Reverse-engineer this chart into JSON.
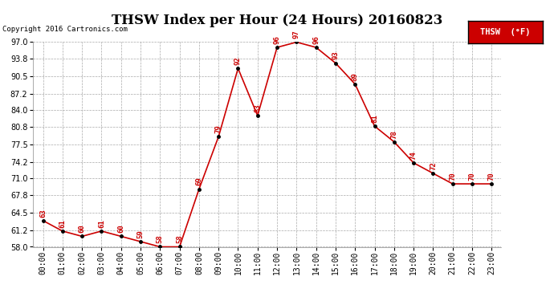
{
  "title": "THSW Index per Hour (24 Hours) 20160823",
  "copyright": "Copyright 2016 Cartronics.com",
  "legend_label": "THSW  (°F)",
  "hours": [
    "00:00",
    "01:00",
    "02:00",
    "03:00",
    "04:00",
    "05:00",
    "06:00",
    "07:00",
    "08:00",
    "09:00",
    "10:00",
    "11:00",
    "12:00",
    "13:00",
    "14:00",
    "15:00",
    "16:00",
    "17:00",
    "18:00",
    "19:00",
    "20:00",
    "21:00",
    "22:00",
    "23:00"
  ],
  "values": [
    63,
    61,
    60,
    61,
    60,
    59,
    58,
    58,
    69,
    79,
    92,
    83,
    96,
    97,
    96,
    93,
    89,
    81,
    78,
    74,
    72,
    70,
    70,
    70
  ],
  "ylim": [
    58.0,
    97.0
  ],
  "yticks": [
    58.0,
    61.2,
    64.5,
    67.8,
    71.0,
    74.2,
    77.5,
    80.8,
    84.0,
    87.2,
    90.5,
    93.8,
    97.0
  ],
  "line_color": "#cc0000",
  "marker_color": "#000000",
  "label_color": "#cc0000",
  "grid_color": "#aaaaaa",
  "bg_color": "#ffffff",
  "title_fontsize": 12,
  "title_fontfamily": "serif",
  "copyright_fontsize": 6.5,
  "legend_bg": "#cc0000",
  "legend_text_color": "#ffffff",
  "tick_label_fontsize": 7,
  "data_label_fontsize": 6.5
}
